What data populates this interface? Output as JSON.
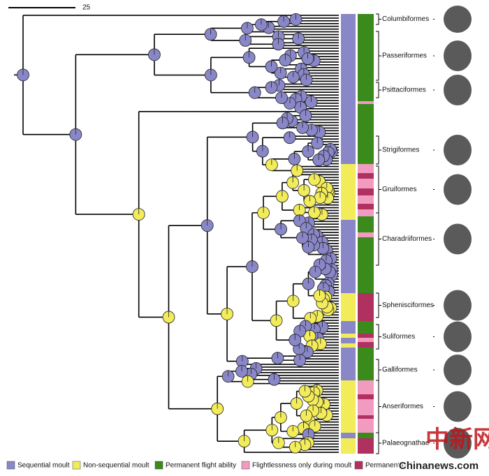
{
  "scale_bar": {
    "label": "25"
  },
  "clades": [
    "Columbiformes",
    "Passeriformes",
    "Psittaciformes",
    "Strigiformes",
    "Gruiformes",
    "Charadriiformes",
    "Sphenisciformes",
    "Suliformes",
    "Galliformes",
    "Anseriformes",
    "Palaeognathae"
  ],
  "legend": [
    {
      "label": "Sequential moult",
      "color": "#8a87c8"
    },
    {
      "label": "Non-sequential moult",
      "color": "#f2ec5a"
    },
    {
      "label": "Permanent flight ability",
      "color": "#3a8a1c"
    },
    {
      "label": "Flightlessness only during moult",
      "color": "#f29bc0"
    },
    {
      "label": "Permanent flightlessness",
      "color": "#b03060"
    }
  ],
  "watermark": {
    "cn": "中新网",
    "site": "Chinanews.com"
  }
}
